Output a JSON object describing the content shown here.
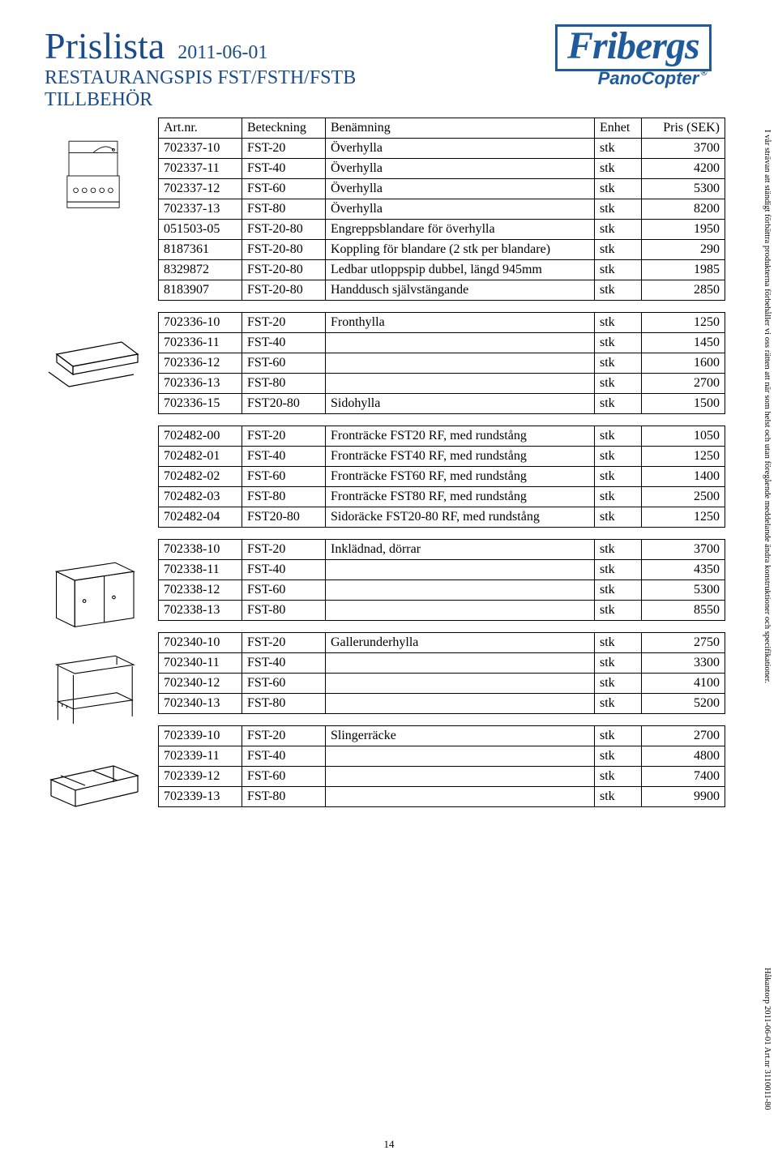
{
  "header": {
    "title": "Prislista",
    "date": "2011-06-01",
    "subtitle1": "RESTAURANGSPIS FST/FSTH/FSTB",
    "subtitle2": "TILLBEHÖR",
    "logo_main": "Fribergs",
    "logo_sub": "PanoCopter"
  },
  "columns": {
    "art": "Art.nr.",
    "bet": "Beteckning",
    "ben": "Benämning",
    "enh": "Enhet",
    "pris": "Pris (SEK)"
  },
  "groups": [
    {
      "sketch": "overshelf",
      "rows": [
        {
          "art": "702337-10",
          "bet": "FST-20",
          "ben": "Överhylla",
          "enh": "stk",
          "pris": "3700"
        },
        {
          "art": "702337-11",
          "bet": "FST-40",
          "ben": "Överhylla",
          "enh": "stk",
          "pris": "4200"
        },
        {
          "art": "702337-12",
          "bet": "FST-60",
          "ben": "Överhylla",
          "enh": "stk",
          "pris": "5300"
        },
        {
          "art": "702337-13",
          "bet": "FST-80",
          "ben": "Överhylla",
          "enh": "stk",
          "pris": "8200"
        },
        {
          "art": "051503-05",
          "bet": "FST-20-80",
          "ben": "Engreppsblandare för överhylla",
          "enh": "stk",
          "pris": "1950"
        },
        {
          "art": "8187361",
          "bet": "FST-20-80",
          "ben": "Koppling för blandare (2 stk per blandare)",
          "enh": "stk",
          "pris": "290"
        },
        {
          "art": "8329872",
          "bet": "FST-20-80",
          "ben": "Ledbar utloppspip dubbel, längd 945mm",
          "enh": "stk",
          "pris": "1985"
        },
        {
          "art": "8183907",
          "bet": "FST-20-80",
          "ben": "Handdusch självstängande",
          "enh": "stk",
          "pris": "2850"
        }
      ]
    },
    {
      "sketch": "fronthylla",
      "rows": [
        {
          "art": "702336-10",
          "bet": "FST-20",
          "ben": "Fronthylla",
          "enh": "stk",
          "pris": "1250"
        },
        {
          "art": "702336-11",
          "bet": "FST-40",
          "ben": "",
          "enh": "stk",
          "pris": "1450"
        },
        {
          "art": "702336-12",
          "bet": "FST-60",
          "ben": "",
          "enh": "stk",
          "pris": "1600"
        },
        {
          "art": "702336-13",
          "bet": "FST-80",
          "ben": "",
          "enh": "stk",
          "pris": "2700"
        },
        {
          "art": "702336-15",
          "bet": "FST20-80",
          "ben": "Sidohylla",
          "enh": "stk",
          "pris": "1500"
        }
      ]
    },
    {
      "sketch": "none",
      "rows": [
        {
          "art": "702482-00",
          "bet": "FST-20",
          "ben": "Fronträcke FST20 RF, med rundstång",
          "enh": "stk",
          "pris": "1050"
        },
        {
          "art": "702482-01",
          "bet": "FST-40",
          "ben": "Fronträcke FST40 RF, med rundstång",
          "enh": "stk",
          "pris": "1250"
        },
        {
          "art": "702482-02",
          "bet": "FST-60",
          "ben": "Fronträcke FST60 RF, med rundstång",
          "enh": "stk",
          "pris": "1400"
        },
        {
          "art": "702482-03",
          "bet": "FST-80",
          "ben": "Fronträcke FST80 RF, med rundstång",
          "enh": "stk",
          "pris": "2500"
        },
        {
          "art": "702482-04",
          "bet": "FST20-80",
          "ben": "Sidoräcke FST20-80 RF, med rundstång",
          "enh": "stk",
          "pris": "1250"
        }
      ]
    },
    {
      "sketch": "cabinet",
      "rows": [
        {
          "art": "702338-10",
          "bet": "FST-20",
          "ben": "Inklädnad, dörrar",
          "enh": "stk",
          "pris": "3700"
        },
        {
          "art": "702338-11",
          "bet": "FST-40",
          "ben": "",
          "enh": "stk",
          "pris": "4350"
        },
        {
          "art": "702338-12",
          "bet": "FST-60",
          "ben": "",
          "enh": "stk",
          "pris": "5300"
        },
        {
          "art": "702338-13",
          "bet": "FST-80",
          "ben": "",
          "enh": "stk",
          "pris": "8550"
        }
      ]
    },
    {
      "sketch": "undershelf",
      "rows": [
        {
          "art": "702340-10",
          "bet": "FST-20",
          "ben": "Gallerunderhylla",
          "enh": "stk",
          "pris": "2750"
        },
        {
          "art": "702340-11",
          "bet": "FST-40",
          "ben": "",
          "enh": "stk",
          "pris": "3300"
        },
        {
          "art": "702340-12",
          "bet": "FST-60",
          "ben": "",
          "enh": "stk",
          "pris": "4100"
        },
        {
          "art": "702340-13",
          "bet": "FST-80",
          "ben": "",
          "enh": "stk",
          "pris": "5200"
        }
      ]
    },
    {
      "sketch": "slingerracke",
      "rows": [
        {
          "art": "702339-10",
          "bet": "FST-20",
          "ben": "Slingerräcke",
          "enh": "stk",
          "pris": "2700"
        },
        {
          "art": "702339-11",
          "bet": "FST-40",
          "ben": "",
          "enh": "stk",
          "pris": "4800"
        },
        {
          "art": "702339-12",
          "bet": "FST-60",
          "ben": "",
          "enh": "stk",
          "pris": "7400"
        },
        {
          "art": "702339-13",
          "bet": "FST-80",
          "ben": "",
          "enh": "stk",
          "pris": "9900"
        }
      ]
    }
  ],
  "side_text": "I vår strävan att ständigt förbättra produkterna förbehåller vi oss rätten att när som helst och utan föregående meddelande ändra konstruktioner och specifikationer.",
  "bottom_side_text": "Håkantorp 2011-06-01   Art.nr 3110011-80",
  "page_number": "14",
  "colors": {
    "brand_blue": "#1a4b8c",
    "border": "#000000",
    "bg": "#ffffff"
  },
  "fonts": {
    "body": "Times New Roman",
    "title_size_pt": 34,
    "body_size_pt": 12
  }
}
